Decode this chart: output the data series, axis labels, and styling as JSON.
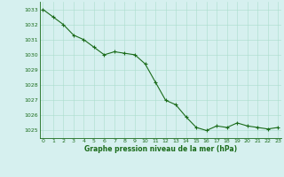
{
  "x": [
    0,
    1,
    2,
    3,
    4,
    5,
    6,
    7,
    8,
    9,
    10,
    11,
    12,
    13,
    14,
    15,
    16,
    17,
    18,
    19,
    20,
    21,
    22,
    23
  ],
  "y": [
    1033.0,
    1032.5,
    1032.0,
    1031.3,
    1031.0,
    1030.5,
    1030.0,
    1030.2,
    1030.1,
    1030.0,
    1029.4,
    1028.2,
    1027.0,
    1026.7,
    1025.9,
    1025.2,
    1025.0,
    1025.3,
    1025.2,
    1025.5,
    1025.3,
    1025.2,
    1025.1,
    1025.2
  ],
  "line_color": "#1a6b1a",
  "marker_color": "#1a6b1a",
  "bg_color": "#d6f0ef",
  "grid_color": "#aaddcc",
  "xlabel": "Graphe pression niveau de la mer (hPa)",
  "xlabel_color": "#1a6b1a",
  "tick_color": "#1a6b1a",
  "ylim": [
    1024.5,
    1033.5
  ],
  "yticks": [
    1025,
    1026,
    1027,
    1028,
    1029,
    1030,
    1031,
    1032,
    1033
  ],
  "xticks": [
    0,
    1,
    2,
    3,
    4,
    5,
    6,
    7,
    8,
    9,
    10,
    11,
    12,
    13,
    14,
    15,
    16,
    17,
    18,
    19,
    20,
    21,
    22,
    23
  ],
  "xlim": [
    -0.3,
    23.3
  ]
}
